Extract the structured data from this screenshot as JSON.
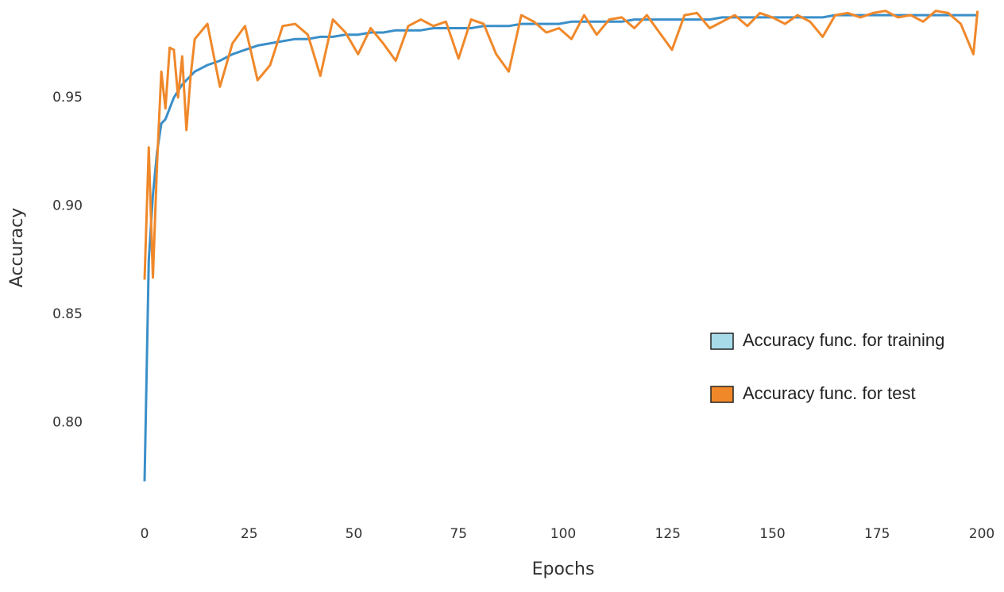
{
  "chart_data": {
    "type": "line",
    "x_label": "Epochs",
    "y_label": "Accuracy",
    "x": [
      0,
      1,
      2,
      3,
      4,
      5,
      6,
      7,
      8,
      9,
      10,
      11,
      12,
      15,
      18,
      21,
      24,
      27,
      30,
      33,
      36,
      39,
      42,
      45,
      48,
      51,
      54,
      57,
      60,
      63,
      66,
      69,
      72,
      75,
      78,
      81,
      84,
      87,
      90,
      93,
      96,
      99,
      102,
      105,
      108,
      111,
      114,
      117,
      120,
      123,
      126,
      129,
      132,
      135,
      138,
      141,
      144,
      147,
      150,
      153,
      156,
      159,
      162,
      165,
      168,
      171,
      174,
      177,
      180,
      183,
      186,
      189,
      192,
      195,
      198,
      199
    ],
    "series": [
      {
        "name": "Accuracy func. for training",
        "color": "#3a8fc9",
        "legend_color": "#a8dbe8",
        "values": [
          0.773,
          0.875,
          0.905,
          0.925,
          0.938,
          0.94,
          0.945,
          0.95,
          0.953,
          0.956,
          0.958,
          0.96,
          0.962,
          0.965,
          0.967,
          0.97,
          0.972,
          0.974,
          0.975,
          0.976,
          0.977,
          0.977,
          0.978,
          0.978,
          0.979,
          0.979,
          0.98,
          0.98,
          0.981,
          0.981,
          0.981,
          0.982,
          0.982,
          0.982,
          0.982,
          0.983,
          0.983,
          0.983,
          0.984,
          0.984,
          0.984,
          0.984,
          0.985,
          0.985,
          0.985,
          0.985,
          0.985,
          0.986,
          0.986,
          0.986,
          0.986,
          0.986,
          0.986,
          0.986,
          0.987,
          0.987,
          0.987,
          0.987,
          0.987,
          0.987,
          0.987,
          0.987,
          0.987,
          0.988,
          0.988,
          0.988,
          0.988,
          0.988,
          0.988,
          0.988,
          0.988,
          0.988,
          0.988,
          0.988,
          0.988,
          0.988
        ]
      },
      {
        "name": "Accuracy func. for test",
        "color": "#f0882a",
        "legend_color": "#f0882a",
        "values": [
          0.866,
          0.927,
          0.867,
          0.92,
          0.962,
          0.945,
          0.973,
          0.972,
          0.95,
          0.969,
          0.935,
          0.96,
          0.977,
          0.984,
          0.955,
          0.975,
          0.983,
          0.958,
          0.965,
          0.983,
          0.984,
          0.979,
          0.96,
          0.986,
          0.98,
          0.97,
          0.982,
          0.975,
          0.967,
          0.983,
          0.986,
          0.983,
          0.985,
          0.968,
          0.986,
          0.984,
          0.97,
          0.962,
          0.988,
          0.985,
          0.98,
          0.982,
          0.977,
          0.988,
          0.979,
          0.986,
          0.987,
          0.982,
          0.988,
          0.98,
          0.972,
          0.988,
          0.989,
          0.982,
          0.985,
          0.988,
          0.983,
          0.989,
          0.987,
          0.984,
          0.988,
          0.985,
          0.978,
          0.988,
          0.989,
          0.987,
          0.989,
          0.99,
          0.987,
          0.988,
          0.985,
          0.99,
          0.989,
          0.984,
          0.97,
          0.99
        ]
      }
    ],
    "xlim": [
      0,
      200
    ],
    "xticks": [
      0,
      25,
      50,
      75,
      100,
      125,
      150,
      175,
      200
    ],
    "ylim": [
      0.76,
      0.995
    ],
    "yticks": [
      {
        "value": 0.8,
        "label": "0.80"
      },
      0.85,
      {
        "value": 0.9,
        "label": "0.90"
      },
      0.95
    ],
    "grid": false,
    "legend_position": "center right"
  }
}
